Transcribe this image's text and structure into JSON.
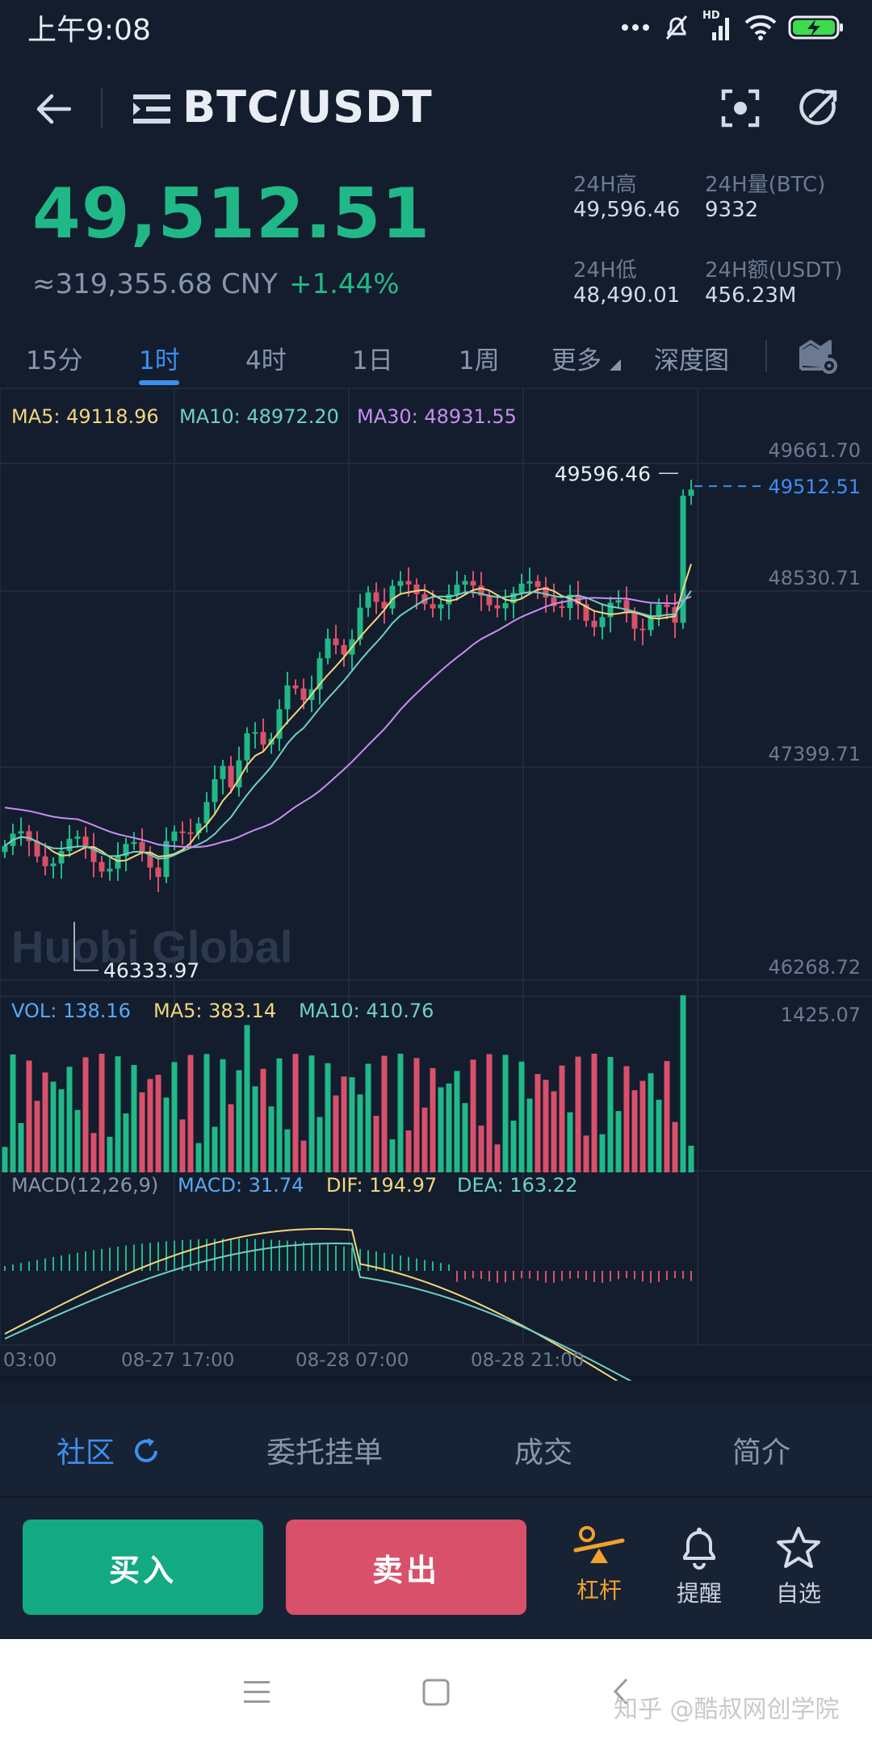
{
  "status_bar": {
    "time": "上午9:08",
    "network_label": "HD"
  },
  "header": {
    "title": "BTC/USDT"
  },
  "price_panel": {
    "last_price": "49,512.51",
    "cny_price": "≈319,355.68 CNY",
    "change_pct": "+1.44%",
    "high_label": "24H高",
    "high_value": "49,596.46",
    "volume_label": "24H量(BTC)",
    "volume_value": "9332",
    "low_label": "24H低",
    "low_value": "48,490.01",
    "turnover_label": "24H额(USDT)",
    "turnover_value": "456.23M"
  },
  "timeframe_tabs": [
    {
      "label": "15分",
      "active": false
    },
    {
      "label": "1时",
      "active": true
    },
    {
      "label": "4时",
      "active": false
    },
    {
      "label": "1日",
      "active": false
    },
    {
      "label": "1周",
      "active": false
    },
    {
      "label": "更多",
      "active": false
    },
    {
      "label": "深度图",
      "active": false
    }
  ],
  "chart_legends": {
    "ma5": "MA5: 49118.96",
    "ma10": "MA10: 48972.20",
    "ma30": "MA30: 48931.55",
    "vol": "VOL: 138.16",
    "vol_ma5": "MA5: 383.14",
    "vol_ma10": "MA10: 410.76",
    "macd_params": "MACD(12,26,9)",
    "macd": "MACD: 31.74",
    "dif": "DIF: 194.97",
    "dea": "DEA: 163.22"
  },
  "chart_data": {
    "type": "candlestick",
    "price_axis": [
      "49661.70",
      "48530.71",
      "47399.71",
      "46268.72"
    ],
    "volume_axis_max": "1425.07",
    "current_price_label": "49512.51",
    "high_marker": "49596.46",
    "low_marker": "46333.97",
    "x_labels": [
      "03:00",
      "08-27 17:00",
      "08-28 07:00",
      "08-28 21:00"
    ],
    "watermark": "Huobi Global"
  },
  "info_tabs": [
    {
      "label": "社区",
      "active": true
    },
    {
      "label": "委托挂单",
      "active": false
    },
    {
      "label": "成交",
      "active": false
    },
    {
      "label": "简介",
      "active": false
    }
  ],
  "actions": {
    "buy": "买入",
    "sell": "卖出",
    "leverage": "杠杆",
    "alert": "提醒",
    "favorite": "自选"
  },
  "colors": {
    "up": "#21b887",
    "down": "#d9506a",
    "accent": "#3d8ff0",
    "leverage": "#f0a22a"
  },
  "watermark_text": "知乎 @酷叔网创学院"
}
